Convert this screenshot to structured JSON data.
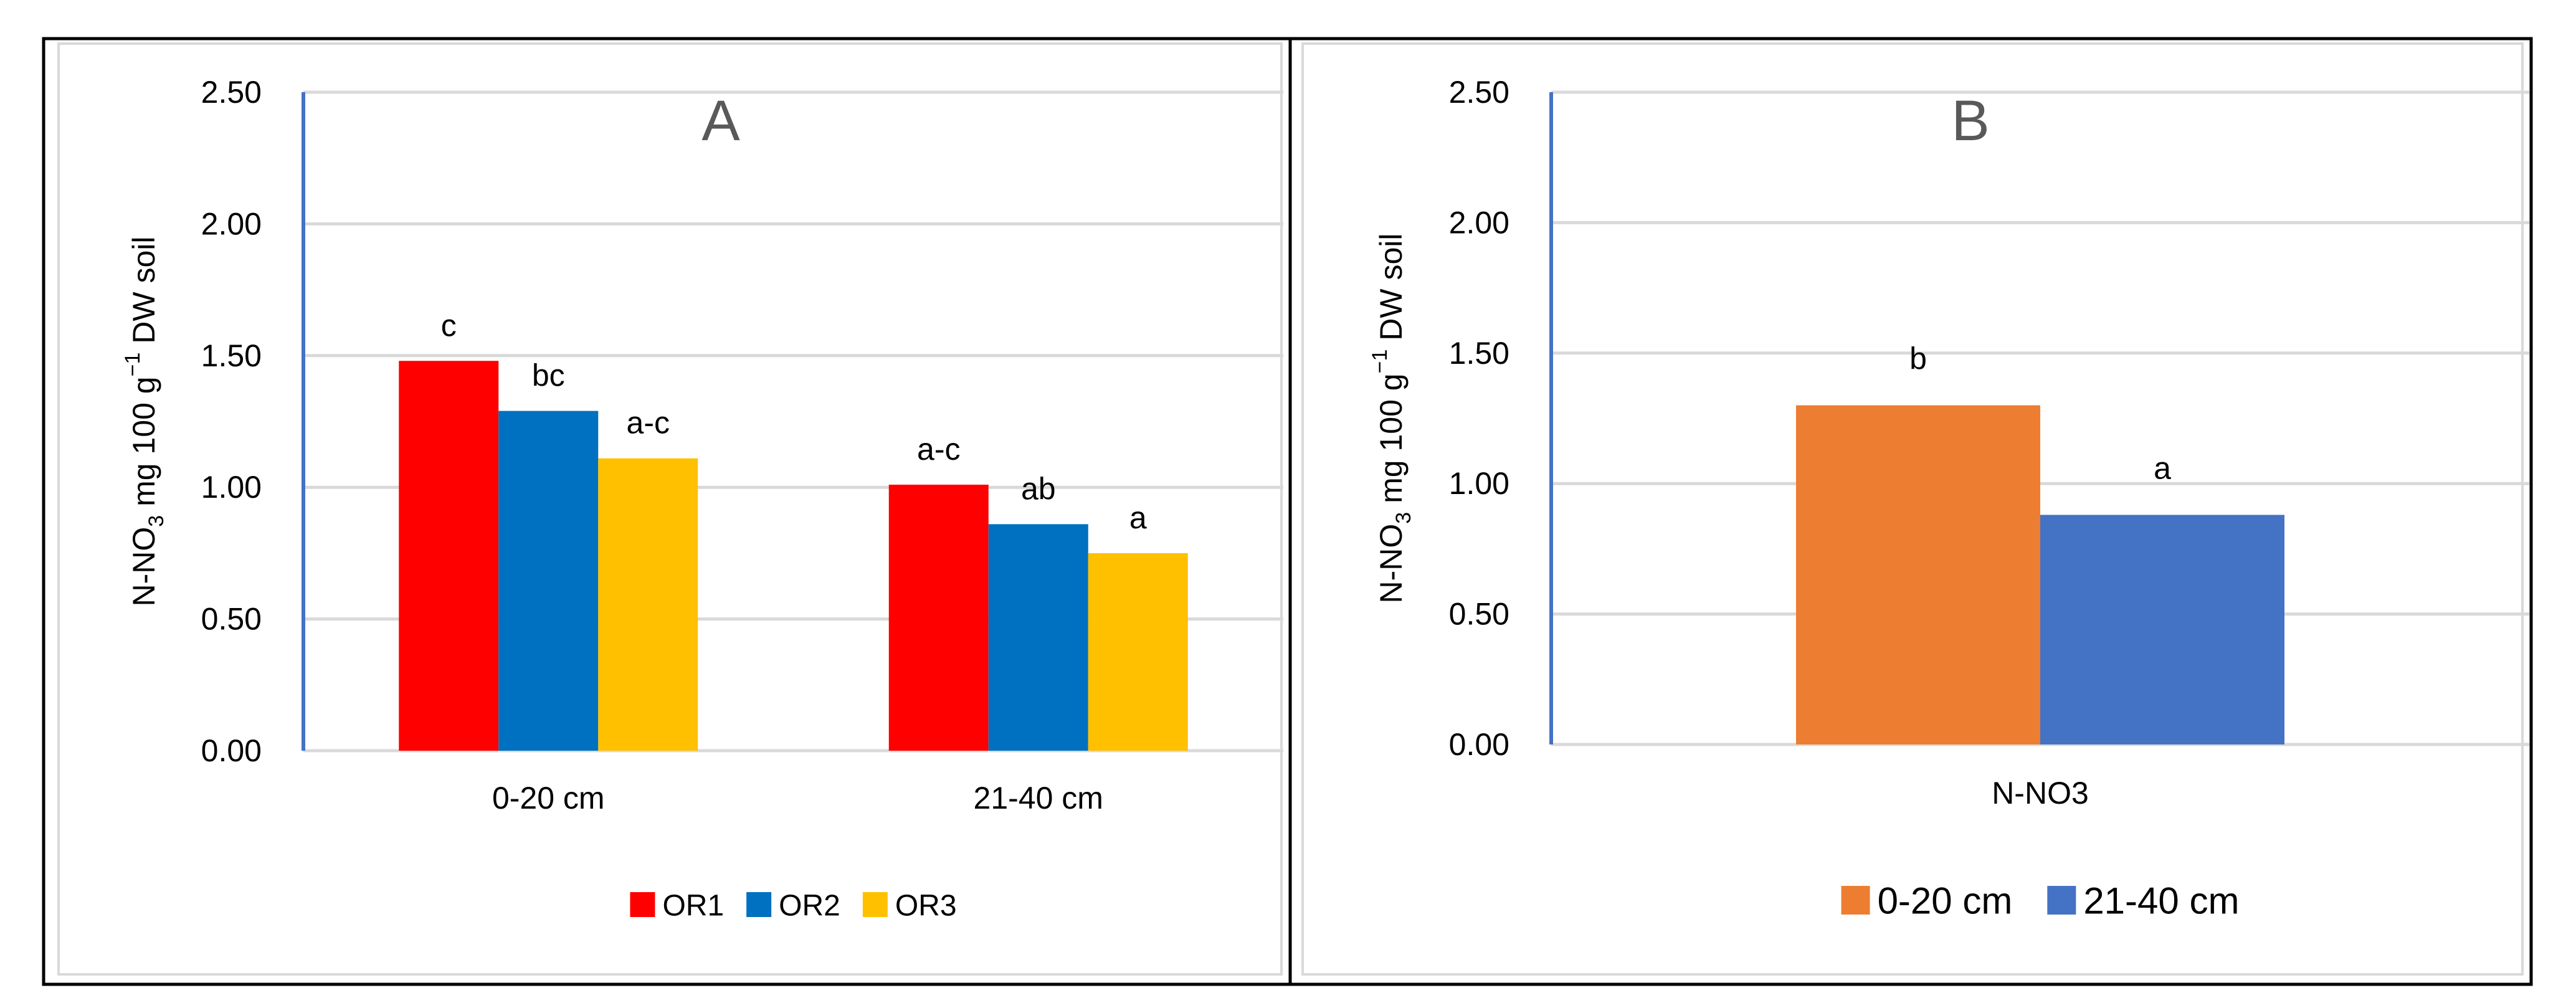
{
  "colors": {
    "or1": "#FF0000",
    "or2": "#0070C0",
    "or3": "#FFC000",
    "depth_0_20": "#ED7D31",
    "depth_21_40": "#4472C4",
    "grid": "#D9D9D9",
    "axis": "#4472C4",
    "text": "#000000",
    "panel_letter": "#595959"
  },
  "chart_data": [
    {
      "panel": "A",
      "type": "bar",
      "ylabel": {
        "main": "N-NO",
        "sub": "3",
        "mid": " mg 100 g",
        "sup": "−1",
        "tail": " DW soil"
      },
      "ylim": [
        0,
        2.5
      ],
      "ytick_values": [
        0,
        0.5,
        1,
        1.5,
        2,
        2.5
      ],
      "yticks": [
        "0.00",
        "0.50",
        "1.00",
        "1.50",
        "2.00",
        "2.50"
      ],
      "grid": true,
      "legend_position": "bottom",
      "categories": [
        "0-20 cm",
        "21-40 cm"
      ],
      "series": [
        {
          "name": "OR1",
          "color": "#FF0000",
          "values": [
            1.48,
            1.01
          ],
          "labels": [
            "c",
            "a-c"
          ]
        },
        {
          "name": "OR2",
          "color": "#0070C0",
          "values": [
            1.29,
            0.86
          ],
          "labels": [
            "bc",
            "ab"
          ]
        },
        {
          "name": "OR3",
          "color": "#FFC000",
          "values": [
            1.11,
            0.75
          ],
          "labels": [
            "a-c",
            "a"
          ]
        }
      ]
    },
    {
      "panel": "B",
      "type": "bar",
      "ylabel": {
        "main": "N-NO",
        "sub": "3",
        "mid": " mg 100 g",
        "sup": "−1",
        "tail": " DW soil"
      },
      "ylim": [
        0,
        2.5
      ],
      "ytick_values": [
        0,
        0.5,
        1,
        1.5,
        2,
        2.5
      ],
      "yticks": [
        "0.00",
        "0.50",
        "1.00",
        "1.50",
        "2.00",
        "2.50"
      ],
      "grid": true,
      "legend_position": "bottom",
      "categories": [
        "N-NO3"
      ],
      "series": [
        {
          "name": "0-20 cm",
          "color": "#ED7D31",
          "values": [
            1.3
          ],
          "labels": [
            "b"
          ]
        },
        {
          "name": "21-40 cm",
          "color": "#4472C4",
          "values": [
            0.88
          ],
          "labels": [
            "a"
          ]
        }
      ]
    }
  ]
}
